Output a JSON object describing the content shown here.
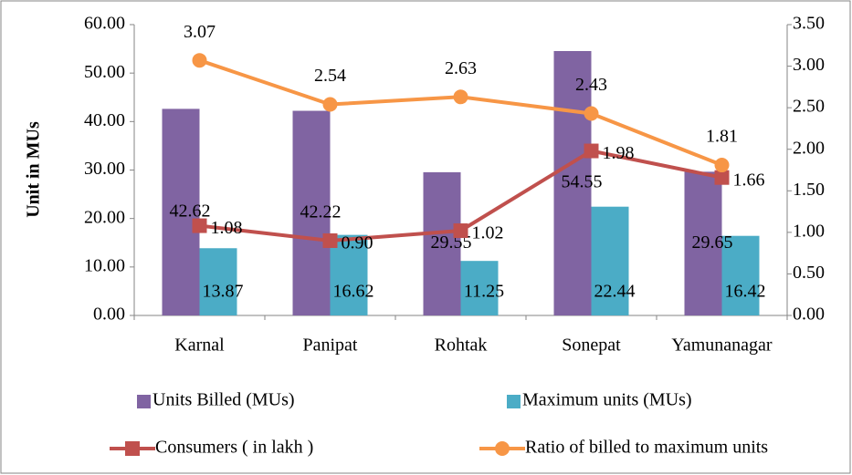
{
  "chart_data": {
    "type": "combo",
    "y_label": "Unit in MUs",
    "categories": [
      "Karnal",
      "Panipat",
      "Rohtak",
      "Sonepat",
      "Yamunanagar"
    ],
    "series": [
      {
        "name": "Units Billed (MUs)",
        "type": "bar",
        "color": "#8064a2",
        "values": [
          42.62,
          42.22,
          29.55,
          54.55,
          29.65
        ]
      },
      {
        "name": "Maximum units (MUs)",
        "type": "bar",
        "color": "#4bacc6",
        "values": [
          13.87,
          16.62,
          11.25,
          22.44,
          16.42
        ]
      },
      {
        "name": "Consumers ( in lakh )",
        "type": "line",
        "axis": "y2",
        "marker": "square",
        "color": "#c0504d",
        "values": [
          1.08,
          0.9,
          1.02,
          1.98,
          1.66
        ],
        "value_labels": [
          "1.08",
          "0.90",
          "1.02",
          "1.98",
          "1.66"
        ]
      },
      {
        "name": "Ratio of billed to maximum units",
        "type": "line",
        "axis": "y2",
        "marker": "circle",
        "color": "#f79646",
        "values": [
          3.07,
          2.54,
          2.63,
          2.43,
          1.81
        ]
      }
    ],
    "ylim": [
      0,
      60
    ],
    "yticks": [
      {
        "value": 0,
        "label": "0.00"
      },
      {
        "value": 10,
        "label": "10.00"
      },
      {
        "value": 20,
        "label": "20.00"
      },
      {
        "value": 30,
        "label": "30.00"
      },
      {
        "value": 40,
        "label": "40.00"
      },
      {
        "value": 50,
        "label": "50.00"
      },
      {
        "value": 60,
        "label": "60.00"
      }
    ],
    "y2lim": [
      0,
      3.5
    ],
    "y2ticks": [
      {
        "value": 0,
        "label": "0.00"
      },
      {
        "value": 0.5,
        "label": "0.50"
      },
      {
        "value": 1,
        "label": "1.00"
      },
      {
        "value": 1.5,
        "label": "1.50"
      },
      {
        "value": 2,
        "label": "2.00"
      },
      {
        "value": 2.5,
        "label": "2.50"
      },
      {
        "value": 3,
        "label": "3.00"
      },
      {
        "value": 3.5,
        "label": "3.50"
      }
    ],
    "grid": false,
    "legend": "bottom"
  }
}
